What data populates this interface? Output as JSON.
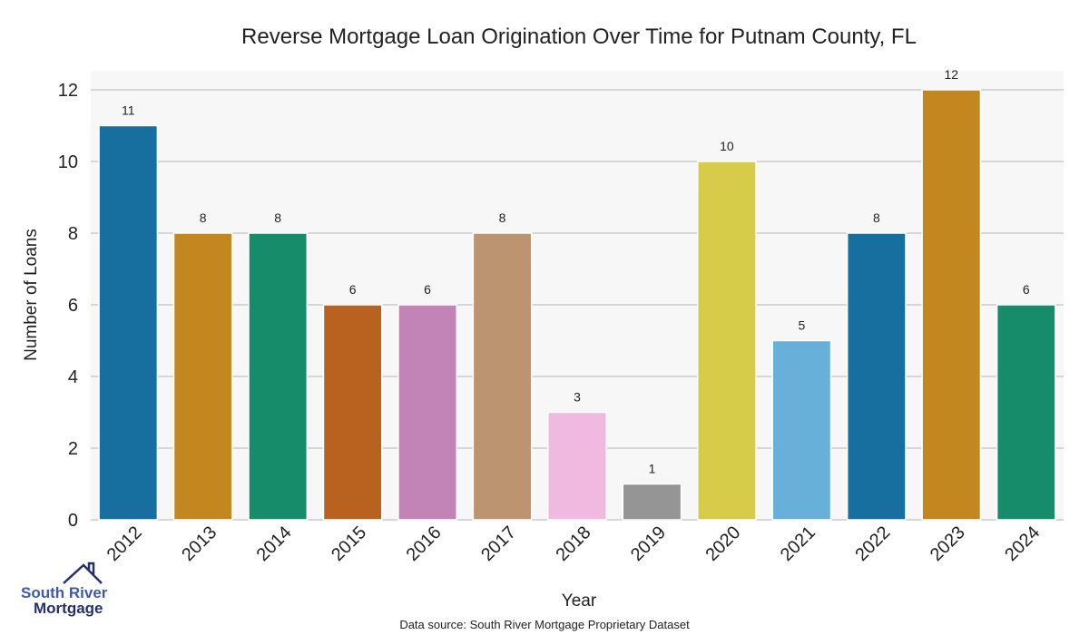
{
  "chart_data": {
    "type": "bar",
    "title": "Reverse Mortgage Loan Origination Over Time for Putnam County, FL",
    "xlabel": "Year",
    "ylabel": "Number of Loans",
    "categories": [
      "2012",
      "2013",
      "2014",
      "2015",
      "2016",
      "2017",
      "2018",
      "2019",
      "2020",
      "2021",
      "2022",
      "2023",
      "2024"
    ],
    "values": [
      11,
      8,
      8,
      6,
      6,
      8,
      3,
      1,
      10,
      5,
      8,
      12,
      6
    ],
    "colors": [
      "#176fa0",
      "#c3871f",
      "#178c6a",
      "#b9611e",
      "#c283b7",
      "#bd9470",
      "#f0b9e0",
      "#959595",
      "#d6cc4a",
      "#66b0da",
      "#176fa0",
      "#c3871f",
      "#178c6a"
    ],
    "yticks": [
      0,
      2,
      4,
      6,
      8,
      10,
      12
    ],
    "ylim": [
      0,
      12.5
    ],
    "grid": true,
    "background": "#f7f7f7"
  },
  "source": "Data source: South River Mortgage Proprietary Dataset",
  "logo": {
    "line1": "South River",
    "line2": "Mortgage"
  }
}
